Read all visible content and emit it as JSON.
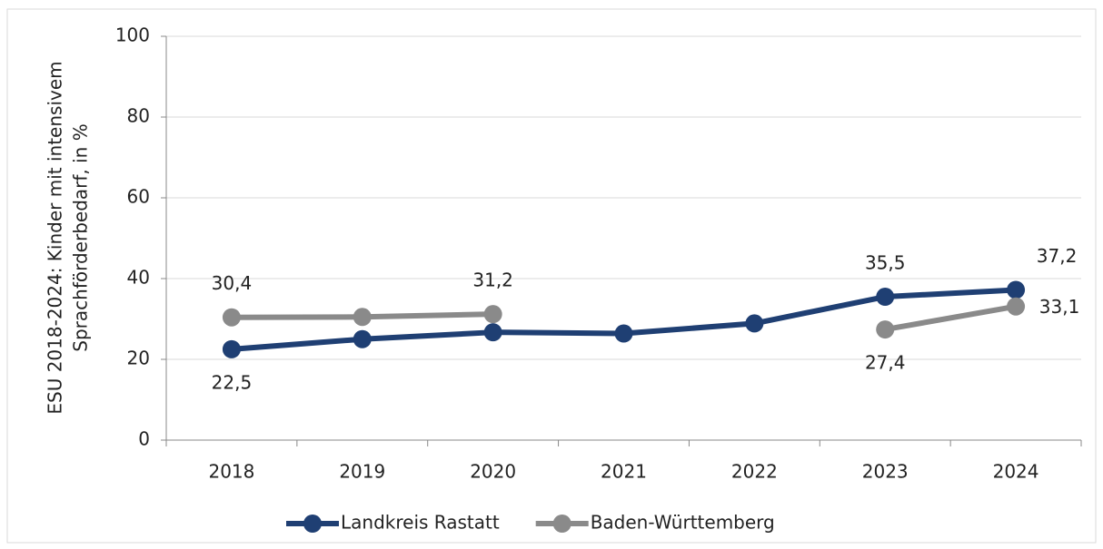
{
  "chart_data": {
    "type": "line",
    "ylabel": [
      "ESU 2018-2024: Kinder mit intensivem",
      "Sprachförderbedarf, in %"
    ],
    "categories": [
      "2018",
      "2019",
      "2020",
      "2021",
      "2022",
      "2023",
      "2024"
    ],
    "series": [
      {
        "name": "Landkreis Rastatt",
        "color": "#1f3f73",
        "values": [
          22.5,
          25.0,
          26.7,
          26.4,
          28.9,
          35.5,
          37.2
        ],
        "value_labels": [
          "22,5",
          null,
          null,
          null,
          null,
          "35,5",
          "37,2"
        ]
      },
      {
        "name": "Baden-Württemberg",
        "color": "#8a8a8a",
        "values": [
          30.4,
          30.5,
          31.2,
          null,
          null,
          27.4,
          33.1
        ],
        "value_labels": [
          "30,4",
          null,
          "31,2",
          null,
          null,
          "27,4",
          "33,1"
        ]
      }
    ],
    "ylim": [
      0,
      100
    ],
    "yticks": [
      0,
      20,
      40,
      60,
      80,
      100
    ],
    "grid": true,
    "legend": "bottom"
  }
}
